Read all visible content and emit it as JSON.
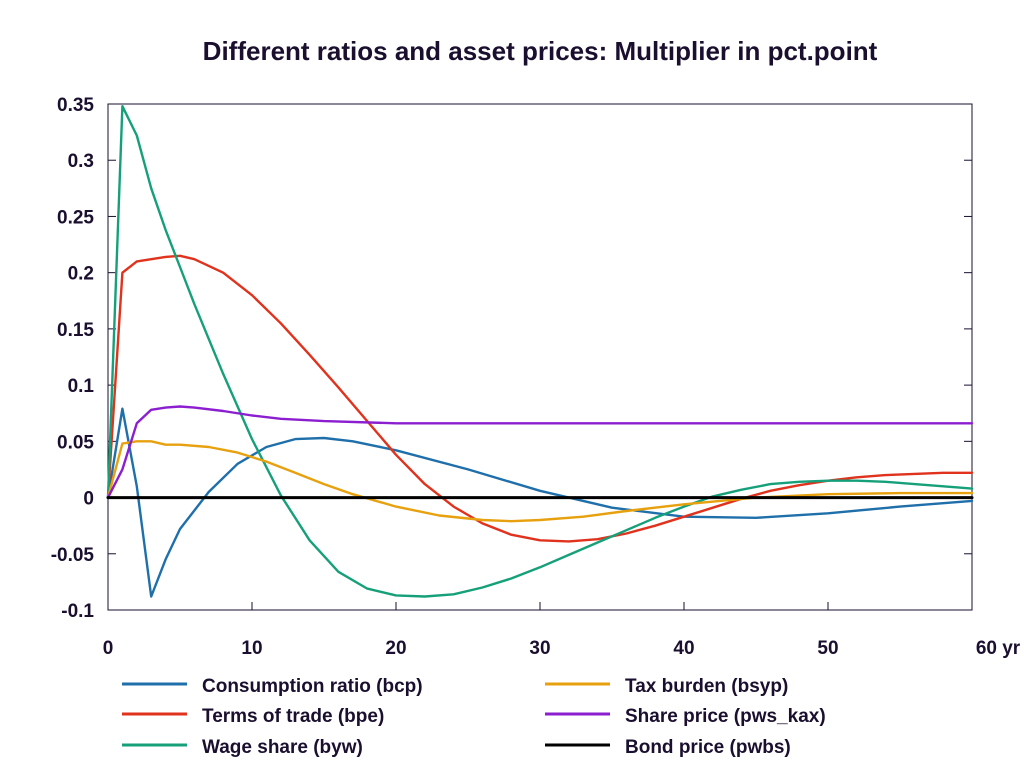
{
  "chart_data": {
    "type": "line",
    "title": "Different ratios and asset prices: Multiplier in pct.point",
    "xlabel": "",
    "ylabel": "",
    "xlim": [
      0,
      60
    ],
    "ylim": [
      -0.1,
      0.35
    ],
    "x_ticks": [
      0,
      10,
      20,
      30,
      40,
      50,
      60
    ],
    "x_tick_labels": [
      "0",
      "10",
      "20",
      "30",
      "40",
      "50",
      "60 yr"
    ],
    "y_ticks": [
      0.35,
      0.3,
      0.25,
      0.2,
      0.15,
      0.1,
      0.05,
      0,
      -0.05,
      -0.1
    ],
    "y_tick_labels": [
      "0.35",
      "0.3",
      "0.25",
      "0.2",
      "0.15",
      "0.1",
      "0.05",
      "0",
      "-0.05",
      "-0.1"
    ],
    "grid": false,
    "legend_position": "bottom",
    "series": [
      {
        "name": "Consumption ratio (bcp)",
        "color": "#1f6fab",
        "x": [
          0,
          1,
          2,
          3,
          4,
          5,
          7,
          9,
          11,
          13,
          15,
          17,
          20,
          25,
          30,
          35,
          40,
          45,
          50,
          55,
          60
        ],
        "y": [
          0,
          0.079,
          0.01,
          -0.088,
          -0.055,
          -0.028,
          0.005,
          0.03,
          0.045,
          0.052,
          0.053,
          0.05,
          0.042,
          0.025,
          0.006,
          -0.009,
          -0.017,
          -0.018,
          -0.014,
          -0.008,
          -0.003
        ]
      },
      {
        "name": "Terms of trade (bpe)",
        "color": "#e0321c",
        "x": [
          0,
          1,
          2,
          3,
          4,
          5,
          6,
          8,
          10,
          12,
          14,
          16,
          18,
          20,
          22,
          24,
          26,
          28,
          30,
          32,
          34,
          36,
          38,
          40,
          42,
          44,
          46,
          48,
          50,
          52,
          54,
          56,
          58,
          60
        ],
        "y": [
          0,
          0.2,
          0.21,
          0.212,
          0.214,
          0.215,
          0.212,
          0.2,
          0.18,
          0.155,
          0.127,
          0.098,
          0.068,
          0.038,
          0.012,
          -0.008,
          -0.023,
          -0.033,
          -0.038,
          -0.039,
          -0.037,
          -0.032,
          -0.025,
          -0.017,
          -0.009,
          -0.001,
          0.006,
          0.011,
          0.015,
          0.018,
          0.02,
          0.021,
          0.022,
          0.022
        ]
      },
      {
        "name": "Wage share (byw)",
        "color": "#16a07a",
        "x": [
          0,
          1,
          2,
          3,
          4,
          5,
          6,
          8,
          10,
          12,
          14,
          16,
          18,
          20,
          22,
          24,
          26,
          28,
          30,
          32,
          34,
          36,
          38,
          40,
          42,
          44,
          46,
          48,
          50,
          52,
          54,
          56,
          58,
          60
        ],
        "y": [
          0,
          0.348,
          0.322,
          0.275,
          0.238,
          0.205,
          0.172,
          0.11,
          0.052,
          0.002,
          -0.038,
          -0.066,
          -0.081,
          -0.087,
          -0.088,
          -0.086,
          -0.08,
          -0.072,
          -0.062,
          -0.051,
          -0.04,
          -0.029,
          -0.018,
          -0.008,
          0.001,
          0.007,
          0.012,
          0.014,
          0.015,
          0.015,
          0.014,
          0.012,
          0.01,
          0.008
        ]
      },
      {
        "name": "Tax burden (bsyp)",
        "color": "#e8a10e",
        "x": [
          0,
          1,
          2,
          3,
          4,
          5,
          7,
          9,
          11,
          13,
          15,
          17,
          20,
          23,
          26,
          28,
          30,
          33,
          36,
          40,
          45,
          50,
          55,
          60
        ],
        "y": [
          0,
          0.048,
          0.05,
          0.05,
          0.047,
          0.047,
          0.045,
          0.04,
          0.032,
          0.022,
          0.012,
          0.003,
          -0.008,
          -0.016,
          -0.02,
          -0.021,
          -0.02,
          -0.017,
          -0.012,
          -0.006,
          0.0,
          0.003,
          0.004,
          0.004
        ]
      },
      {
        "name": "Share price (pws_kax)",
        "color": "#8b1fd0",
        "x": [
          0,
          1,
          2,
          3,
          4,
          5,
          6,
          8,
          10,
          12,
          15,
          20,
          25,
          30,
          40,
          50,
          60
        ],
        "y": [
          0,
          0.025,
          0.066,
          0.078,
          0.08,
          0.081,
          0.08,
          0.077,
          0.073,
          0.07,
          0.068,
          0.066,
          0.066,
          0.066,
          0.066,
          0.066,
          0.066
        ]
      },
      {
        "name": "Bond price (pwbs)",
        "color": "#000000",
        "x": [
          0,
          60
        ],
        "y": [
          0,
          0
        ]
      }
    ]
  }
}
